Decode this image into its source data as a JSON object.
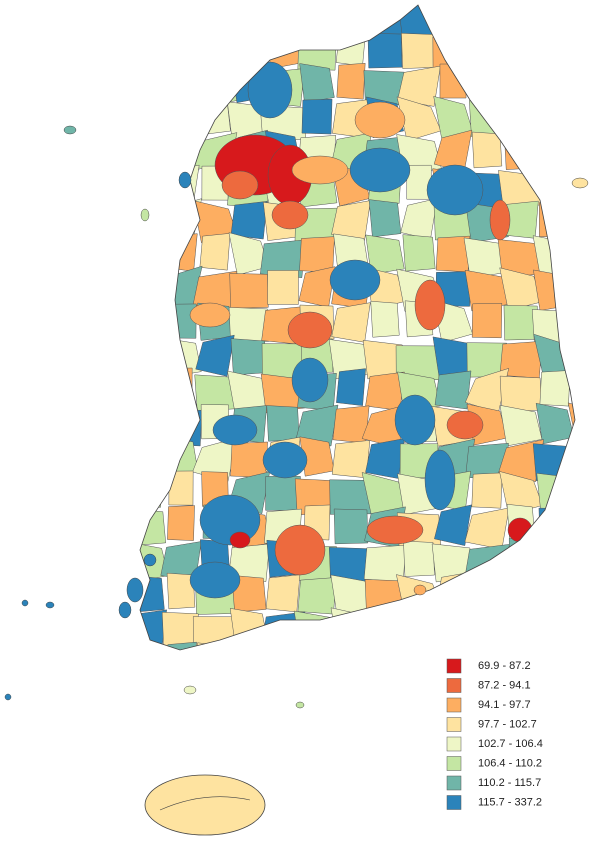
{
  "legend": {
    "classes": [
      {
        "label": "69.9 - 87.2",
        "color": "#d7191c"
      },
      {
        "label": "87.2 - 94.1",
        "color": "#ed6a3e"
      },
      {
        "label": "94.1 - 97.7",
        "color": "#fdae61"
      },
      {
        "label": "97.7 - 102.7",
        "color": "#fee3a0"
      },
      {
        "label": "102.7 - 106.4",
        "color": "#eef6c6"
      },
      {
        "label": "106.4 - 110.2",
        "color": "#c4e6a3"
      },
      {
        "label": "110.2 - 115.7",
        "color": "#70b5a8"
      },
      {
        "label": "115.7 - 337.2",
        "color": "#2b83ba"
      }
    ]
  }
}
